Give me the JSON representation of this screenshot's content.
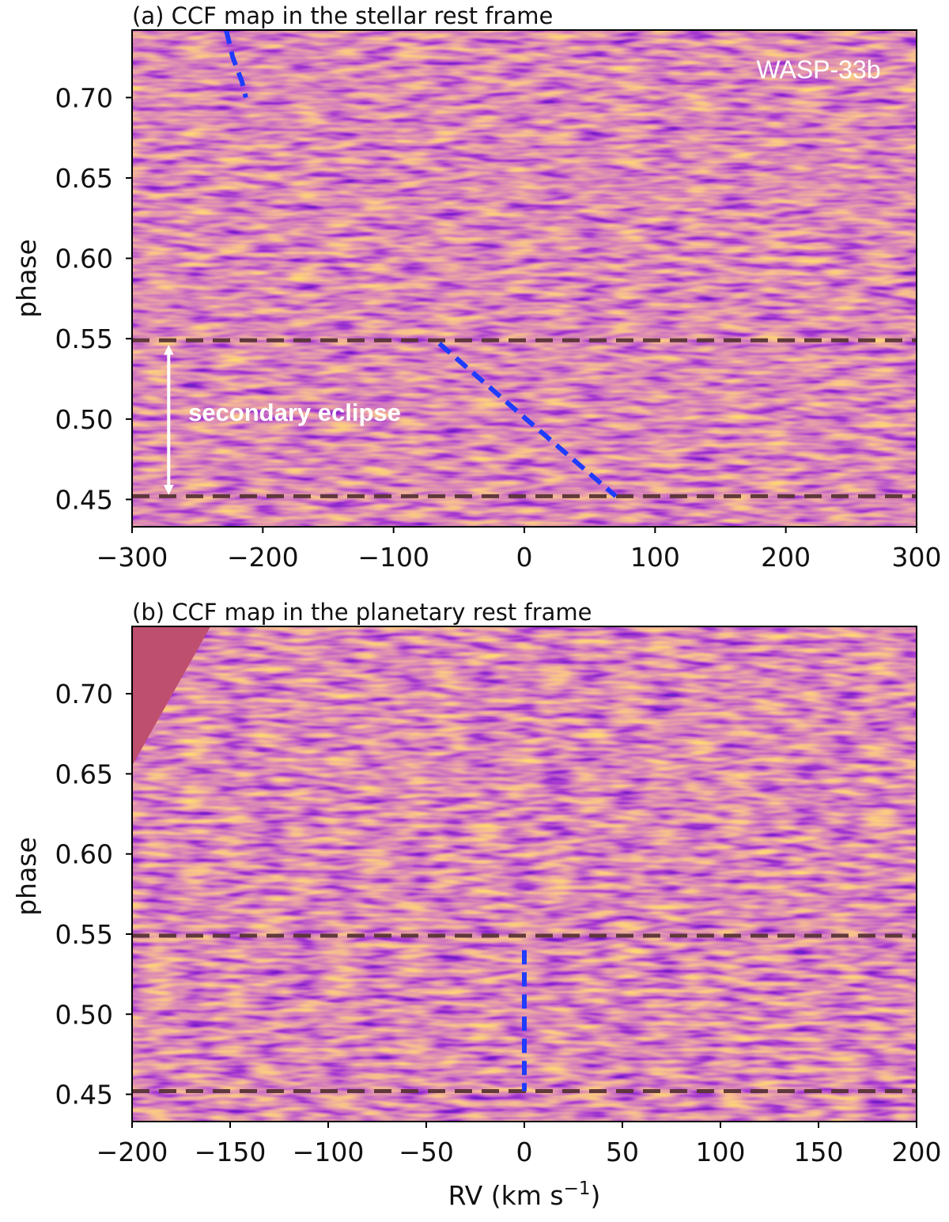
{
  "chart_data": [
    {
      "id": "a",
      "type": "heatmap",
      "title": "(a) CCF map in the stellar rest frame",
      "xlabel": "",
      "ylabel": "phase",
      "xlim": [
        -300,
        300
      ],
      "ylim": [
        0.433,
        0.742
      ],
      "xticks": [
        -300,
        -200,
        -100,
        0,
        100,
        200,
        300
      ],
      "xtick_labels": [
        "−300",
        "−200",
        "−100",
        "0",
        "100",
        "200",
        "300"
      ],
      "yticks": [
        0.45,
        0.5,
        0.55,
        0.6,
        0.65,
        0.7
      ],
      "ytick_labels": [
        "0.45",
        "0.50",
        "0.55",
        "0.60",
        "0.65",
        "0.70"
      ],
      "colormap": "plasma",
      "eclipse_lines": [
        0.452,
        0.549
      ],
      "eclipse_line_color": "#5a3436",
      "trail_color": "#1f3cff",
      "planet_trails": [
        {
          "points": [
            [
              -228,
              0.742
            ],
            [
              -223,
              0.725
            ],
            [
              -216,
              0.71
            ],
            [
              -213,
              0.7
            ]
          ]
        },
        {
          "points": [
            [
              -65,
              0.547
            ],
            [
              0,
              0.501
            ],
            [
              70,
              0.452
            ]
          ]
        }
      ],
      "annotations": [
        {
          "text": "WASP-33b",
          "x": 225,
          "y": 0.712,
          "bold": false
        },
        {
          "text": "secondary eclipse",
          "x": -257,
          "y": 0.499,
          "bold": true
        }
      ],
      "arrow": {
        "x": -272,
        "y_from": 0.452,
        "y_to": 0.547,
        "color": "#ffffff"
      }
    },
    {
      "id": "b",
      "type": "heatmap",
      "title": "(b) CCF map in the planetary rest frame",
      "xlabel": "RV (km s",
      "xlabel_sup": "−1",
      "xlabel_end": ")",
      "ylabel": "phase",
      "xlim": [
        -200,
        200
      ],
      "ylim": [
        0.433,
        0.742
      ],
      "xticks": [
        -200,
        -150,
        -100,
        -50,
        0,
        50,
        100,
        150,
        200
      ],
      "xtick_labels": [
        "−200",
        "−150",
        "−100",
        "−50",
        "0",
        "50",
        "100",
        "150",
        "200"
      ],
      "yticks": [
        0.45,
        0.5,
        0.55,
        0.6,
        0.65,
        0.7
      ],
      "ytick_labels": [
        "0.45",
        "0.50",
        "0.55",
        "0.60",
        "0.65",
        "0.70"
      ],
      "colormap": "plasma",
      "eclipse_lines": [
        0.452,
        0.549
      ],
      "eclipse_line_color": "#5a3436",
      "trail_color": "#1f3cff",
      "planet_trails": [
        {
          "points": [
            [
              0,
              0.54
            ],
            [
              0,
              0.452
            ]
          ]
        }
      ],
      "no_data_region": {
        "points": [
          [
            -200,
            0.742
          ],
          [
            -160,
            0.742
          ],
          [
            -200,
            0.655
          ]
        ],
        "color": "#bf4f6e"
      },
      "annotations": [],
      "arrow": null
    }
  ]
}
